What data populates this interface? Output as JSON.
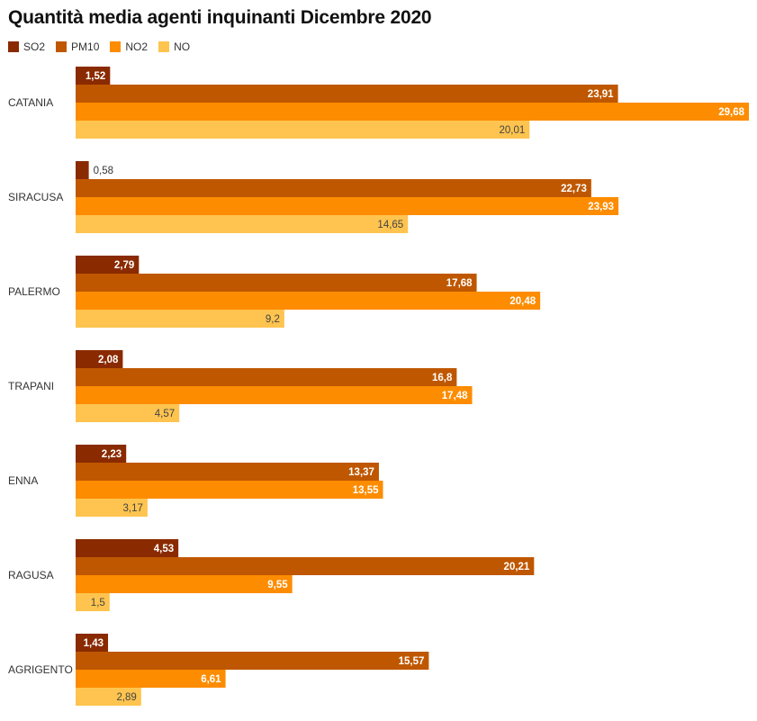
{
  "chart_data": {
    "type": "bar",
    "orientation": "horizontal",
    "title": "Quantità media agenti inquinanti Dicembre 2020",
    "categories": [
      "CATANIA",
      "SIRACUSA",
      "PALERMO",
      "TRAPANI",
      "ENNA",
      "RAGUSA",
      "AGRIGENTO"
    ],
    "series": [
      {
        "name": "SO2",
        "color": "#8a2a00",
        "values": [
          1.52,
          0.58,
          2.79,
          2.08,
          2.23,
          4.53,
          1.43
        ],
        "labels": [
          "1,52",
          "0,58",
          "2,79",
          "2,08",
          "2,23",
          "4,53",
          "1,43"
        ]
      },
      {
        "name": "PM10",
        "color": "#bf5700",
        "values": [
          23.91,
          22.73,
          17.68,
          16.8,
          13.37,
          20.21,
          15.57
        ],
        "labels": [
          "23,91",
          "22,73",
          "17,68",
          "16,8",
          "13,37",
          "20,21",
          "15,57"
        ]
      },
      {
        "name": "NO2",
        "color": "#fd8c00",
        "values": [
          29.68,
          23.93,
          20.48,
          17.48,
          13.55,
          9.55,
          6.61
        ],
        "labels": [
          "29,68",
          "23,93",
          "20,48",
          "17,48",
          "13,55",
          "9,55",
          "6,61"
        ]
      },
      {
        "name": "NO",
        "color": "#fec44f",
        "values": [
          20.01,
          14.65,
          9.2,
          4.57,
          3.17,
          1.5,
          2.89
        ],
        "labels": [
          "20,01",
          "14,65",
          "9,2",
          "4,57",
          "3,17",
          "1,5",
          "2,89"
        ]
      }
    ],
    "xlim": [
      0,
      29.68
    ],
    "legend_position": "top-left",
    "grid": false
  }
}
